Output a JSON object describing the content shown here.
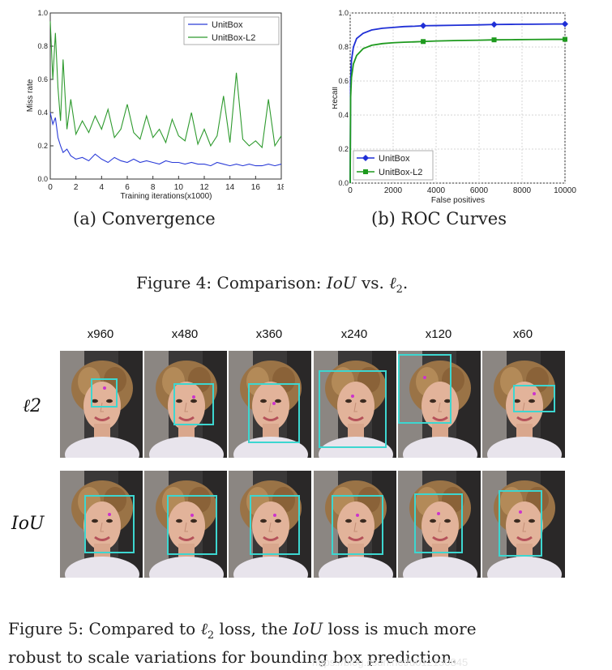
{
  "chart_data": [
    {
      "type": "line",
      "title": "",
      "xlabel": "Training iterations(x1000)",
      "ylabel": "Miss rate",
      "xlim": [
        0,
        18
      ],
      "ylim": [
        0.0,
        1.0
      ],
      "xticks": [
        "0",
        "2",
        "4",
        "6",
        "8",
        "10",
        "12",
        "14",
        "16",
        "18"
      ],
      "yticks": [
        "0.0",
        "0.2",
        "0.4",
        "0.6",
        "0.8",
        "1.0"
      ],
      "legend_position": "top-right",
      "series": [
        {
          "name": "UnitBox",
          "color": "#2b3cd8",
          "x": [
            0,
            0.2,
            0.4,
            0.6,
            0.8,
            1.0,
            1.3,
            1.6,
            2.0,
            2.5,
            3.0,
            3.5,
            4.0,
            4.5,
            5.0,
            5.5,
            6.0,
            6.5,
            7.0,
            7.5,
            8.0,
            8.5,
            9.0,
            9.5,
            10.0,
            10.5,
            11.0,
            11.5,
            12.0,
            12.5,
            13.0,
            13.5,
            14.0,
            14.5,
            15.0,
            15.5,
            16.0,
            16.5,
            17.0,
            17.5,
            18.0
          ],
          "y": [
            0.4,
            0.33,
            0.37,
            0.25,
            0.2,
            0.16,
            0.18,
            0.14,
            0.12,
            0.13,
            0.11,
            0.15,
            0.12,
            0.1,
            0.13,
            0.11,
            0.1,
            0.12,
            0.1,
            0.11,
            0.1,
            0.09,
            0.11,
            0.1,
            0.1,
            0.09,
            0.1,
            0.09,
            0.09,
            0.08,
            0.1,
            0.09,
            0.08,
            0.09,
            0.08,
            0.09,
            0.08,
            0.08,
            0.09,
            0.08,
            0.09
          ]
        },
        {
          "name": "UnitBox-L2",
          "color": "#2e9a2e",
          "x": [
            0,
            0.2,
            0.4,
            0.6,
            0.8,
            1.0,
            1.3,
            1.6,
            2.0,
            2.5,
            3.0,
            3.5,
            4.0,
            4.5,
            5.0,
            5.5,
            6.0,
            6.5,
            7.0,
            7.5,
            8.0,
            8.5,
            9.0,
            9.5,
            10.0,
            10.5,
            11.0,
            11.5,
            12.0,
            12.5,
            13.0,
            13.5,
            14.0,
            14.5,
            15.0,
            15.5,
            16.0,
            16.5,
            17.0,
            17.5,
            18.0
          ],
          "y": [
            0.95,
            0.6,
            0.88,
            0.55,
            0.35,
            0.72,
            0.3,
            0.48,
            0.27,
            0.35,
            0.28,
            0.38,
            0.3,
            0.42,
            0.25,
            0.3,
            0.45,
            0.28,
            0.24,
            0.38,
            0.25,
            0.3,
            0.22,
            0.36,
            0.26,
            0.23,
            0.4,
            0.21,
            0.3,
            0.2,
            0.26,
            0.5,
            0.22,
            0.64,
            0.24,
            0.2,
            0.23,
            0.19,
            0.48,
            0.2,
            0.26
          ]
        }
      ]
    },
    {
      "type": "line",
      "title": "",
      "xlabel": "False positives",
      "ylabel": "Recall",
      "xlim": [
        0,
        10000
      ],
      "ylim": [
        0.0,
        1.0
      ],
      "xticks": [
        "0",
        "2000",
        "4000",
        "6000",
        "8000",
        "10000"
      ],
      "yticks": [
        "0.0",
        "0.2",
        "0.4",
        "0.6",
        "0.8",
        "1.0"
      ],
      "grid": true,
      "legend_position": "bottom-left",
      "series": [
        {
          "name": "UnitBox",
          "color": "#1f2fd6",
          "marker": "diamond",
          "x": [
            0,
            20,
            60,
            150,
            300,
            600,
            1000,
            1500,
            2000,
            2500,
            3000,
            3400,
            4000,
            5000,
            6000,
            6700,
            7500,
            8500,
            9500,
            10000
          ],
          "y": [
            0.0,
            0.6,
            0.72,
            0.8,
            0.85,
            0.88,
            0.9,
            0.91,
            0.915,
            0.92,
            0.922,
            0.925,
            0.926,
            0.928,
            0.93,
            0.932,
            0.933,
            0.934,
            0.935,
            0.935
          ],
          "marker_x": [
            3400,
            6700,
            10000
          ],
          "marker_y": [
            0.925,
            0.932,
            0.935
          ]
        },
        {
          "name": "UnitBox-L2",
          "color": "#1e9a1e",
          "marker": "square",
          "x": [
            0,
            20,
            60,
            150,
            300,
            600,
            1000,
            1500,
            2000,
            2500,
            3000,
            3400,
            4000,
            5000,
            6000,
            6700,
            7500,
            8500,
            9500,
            10000
          ],
          "y": [
            0.0,
            0.5,
            0.62,
            0.7,
            0.75,
            0.79,
            0.81,
            0.82,
            0.825,
            0.828,
            0.83,
            0.832,
            0.835,
            0.838,
            0.84,
            0.842,
            0.843,
            0.844,
            0.845,
            0.845
          ],
          "marker_x": [
            3400,
            6700,
            10000
          ],
          "marker_y": [
            0.832,
            0.842,
            0.845
          ]
        }
      ]
    }
  ],
  "subcaptions": {
    "a": "(a) Convergence",
    "b": "(b) ROC Curves"
  },
  "figure4": {
    "prefix": "Figure 4: Comparison: ",
    "iou": "IoU",
    "middle": " vs. ",
    "l2": "ℓ",
    "l2_sub": "2",
    "end": "."
  },
  "faces": {
    "columns": [
      "x960",
      "x480",
      "x360",
      "x240",
      "x120",
      "x60"
    ],
    "rows": [
      {
        "label": "ℓ2"
      },
      {
        "label": "IoU"
      }
    ]
  },
  "figure5": {
    "line1_prefix": "Figure 5:  Compared to ",
    "l2": "ℓ",
    "l2_sub": "2",
    "line1_mid": " loss, the ",
    "iou": "IoU",
    "line1_end": " loss is much more",
    "line2": "robust to scale variations for bounding box prediction."
  },
  "watermark": "https://blog.csdn.net/u012150845"
}
